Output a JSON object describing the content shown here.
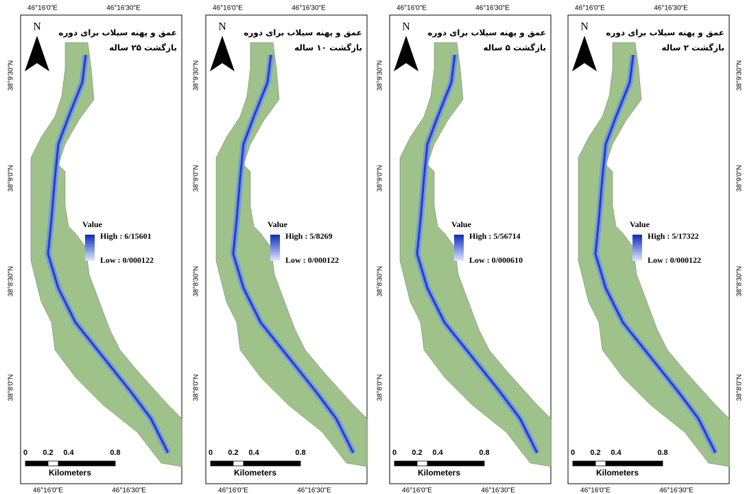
{
  "panels": [
    {
      "north": "N",
      "title": [
        "عمق و پهنه سیلاب برای دوره",
        "بازگشت ۲۵ ساله"
      ],
      "legend": {
        "label": "Value",
        "high": "High : 6/15601",
        "low": "Low : 0/000122"
      },
      "scale": {
        "ticks": [
          "0",
          "0.2",
          "0.4",
          "0.8"
        ],
        "unit": "Kilometers"
      },
      "top_lon": [
        "46°16'0\"E",
        "46°16'30\"E"
      ],
      "bottom_lon": [
        "46°16'0\"E",
        "46°16'30\"E"
      ],
      "lat": [
        "38°9'30\"N",
        "38°9'0\"N",
        "38°8'30\"N",
        "38°8'0\"N"
      ]
    },
    {
      "north": "N",
      "title": [
        "عمق و پهنه سیلاب برای دوره",
        "بازگشت ۱۰ ساله"
      ],
      "legend": {
        "label": "Value",
        "high": "High : 5/8269",
        "low": "Low : 0/000122"
      },
      "scale": {
        "ticks": [
          "0",
          "0.2",
          "0.4",
          "0.8"
        ],
        "unit": "Kilometers"
      },
      "top_lon": [
        "46°16'0\"E",
        "46°16'30\"E"
      ],
      "bottom_lon": [
        "46°16'0\"E",
        "46°16'30\"E"
      ],
      "lat": [
        "38°9'30\"N",
        "38°9'0\"N",
        "38°8'30\"N",
        "38°8'0\"N"
      ]
    },
    {
      "north": "N",
      "title": [
        "عمق و پهنه سیلاب برای دوره",
        "بازگشت ۵ ساله"
      ],
      "legend": {
        "label": "Value",
        "high": "High : 5/56714",
        "low": "Low : 0/000610"
      },
      "scale": {
        "ticks": [
          "0",
          "0.2",
          "0.4",
          "0.8"
        ],
        "unit": "Kilometers"
      },
      "top_lon": [
        "46°16'0\"E",
        "46°16'30\"E"
      ],
      "bottom_lon": [
        "46°16'0\"E",
        "46°16'30\"E"
      ],
      "lat": [
        "38°9'30\"N",
        "38°9'0\"N",
        "38°8'30\"N",
        "38°8'0\"N"
      ]
    },
    {
      "north": "N",
      "title": [
        "عمق و پهنه سیلاب برای دوره",
        "بازگشت ۲ ساله"
      ],
      "legend": {
        "label": "Value",
        "high": "High : 5/17322",
        "low": "Low : 0/000122"
      },
      "scale": {
        "ticks": [
          "0",
          "0.2",
          "0.4",
          "0.8"
        ],
        "unit": "Kilometers"
      },
      "top_lon": [
        "46°16'0\"E",
        "46°16'30\"E"
      ],
      "bottom_lon": [
        "46°16'0\"E",
        "46°16'30\"E"
      ],
      "lat": [
        "38°9'30\"N",
        "38°9'0\"N",
        "38°8'30\"N",
        "38°8'0\"N"
      ]
    }
  ]
}
